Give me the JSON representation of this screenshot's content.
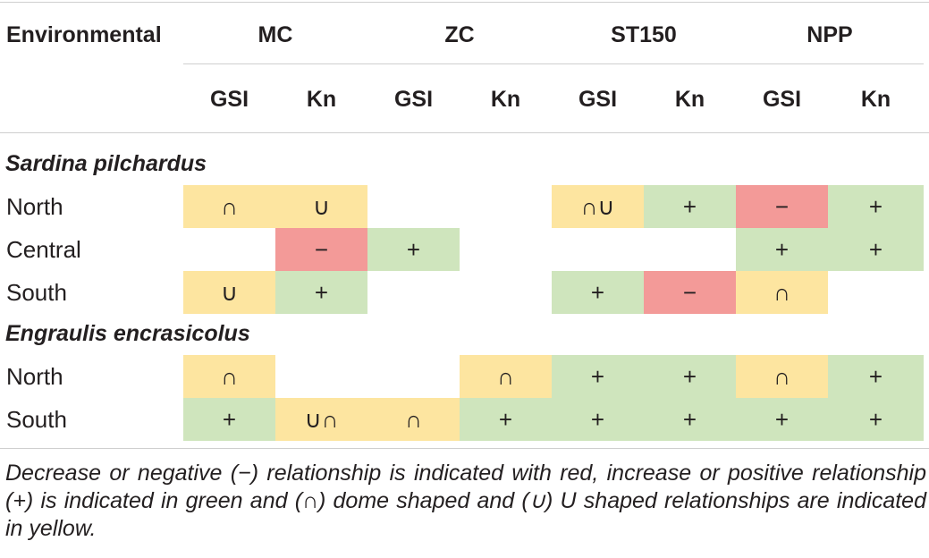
{
  "header": {
    "row_label": "Environmental",
    "groups": [
      "MC",
      "ZC",
      "ST150",
      "NPP"
    ],
    "subheaders": [
      "GSI",
      "Kn",
      "GSI",
      "Kn",
      "GSI",
      "Kn",
      "GSI",
      "Kn"
    ]
  },
  "colors": {
    "negative": "#f39a98",
    "positive": "#cfe5bd",
    "shaped": "#fde5a0"
  },
  "sections": [
    {
      "species": "Sardina pilchardus",
      "rows": [
        {
          "label": "North",
          "cells": [
            {
              "symbol": "∩",
              "type": "shaped"
            },
            {
              "symbol": "∪",
              "type": "shaped"
            },
            {
              "symbol": "",
              "type": "none"
            },
            {
              "symbol": "",
              "type": "none"
            },
            {
              "symbol": "∩∪",
              "type": "shaped"
            },
            {
              "symbol": "+",
              "type": "positive"
            },
            {
              "symbol": "−",
              "type": "negative"
            },
            {
              "symbol": "+",
              "type": "positive"
            }
          ]
        },
        {
          "label": "Central",
          "cells": [
            {
              "symbol": "",
              "type": "none"
            },
            {
              "symbol": "−",
              "type": "negative"
            },
            {
              "symbol": "+",
              "type": "positive"
            },
            {
              "symbol": "",
              "type": "none"
            },
            {
              "symbol": "",
              "type": "none"
            },
            {
              "symbol": "",
              "type": "none"
            },
            {
              "symbol": "+",
              "type": "positive"
            },
            {
              "symbol": "+",
              "type": "positive"
            }
          ]
        },
        {
          "label": "South",
          "cells": [
            {
              "symbol": "∪",
              "type": "shaped"
            },
            {
              "symbol": "+",
              "type": "positive"
            },
            {
              "symbol": "",
              "type": "none"
            },
            {
              "symbol": "",
              "type": "none"
            },
            {
              "symbol": "+",
              "type": "positive"
            },
            {
              "symbol": "−",
              "type": "negative"
            },
            {
              "symbol": "∩",
              "type": "shaped"
            },
            {
              "symbol": "",
              "type": "none"
            }
          ]
        }
      ]
    },
    {
      "species": "Engraulis encrasicolus",
      "rows": [
        {
          "label": "North",
          "cells": [
            {
              "symbol": "∩",
              "type": "shaped"
            },
            {
              "symbol": "",
              "type": "none"
            },
            {
              "symbol": "",
              "type": "none"
            },
            {
              "symbol": "∩",
              "type": "shaped"
            },
            {
              "symbol": "+",
              "type": "positive"
            },
            {
              "symbol": "+",
              "type": "positive"
            },
            {
              "symbol": "∩",
              "type": "shaped"
            },
            {
              "symbol": "+",
              "type": "positive"
            }
          ]
        },
        {
          "label": "South",
          "cells": [
            {
              "symbol": "+",
              "type": "positive"
            },
            {
              "symbol": "∪∩",
              "type": "shaped"
            },
            {
              "symbol": "∩",
              "type": "shaped"
            },
            {
              "symbol": "+",
              "type": "positive"
            },
            {
              "symbol": "+",
              "type": "positive"
            },
            {
              "symbol": "+",
              "type": "positive"
            },
            {
              "symbol": "+",
              "type": "positive"
            },
            {
              "symbol": "+",
              "type": "positive"
            }
          ]
        }
      ]
    }
  ],
  "footnote": "Decrease or negative (−) relationship is indicated with red, increase or positive relationship (+) is indicated in green and (∩) dome shaped and (∪) U shaped relationships are indicated in yellow."
}
